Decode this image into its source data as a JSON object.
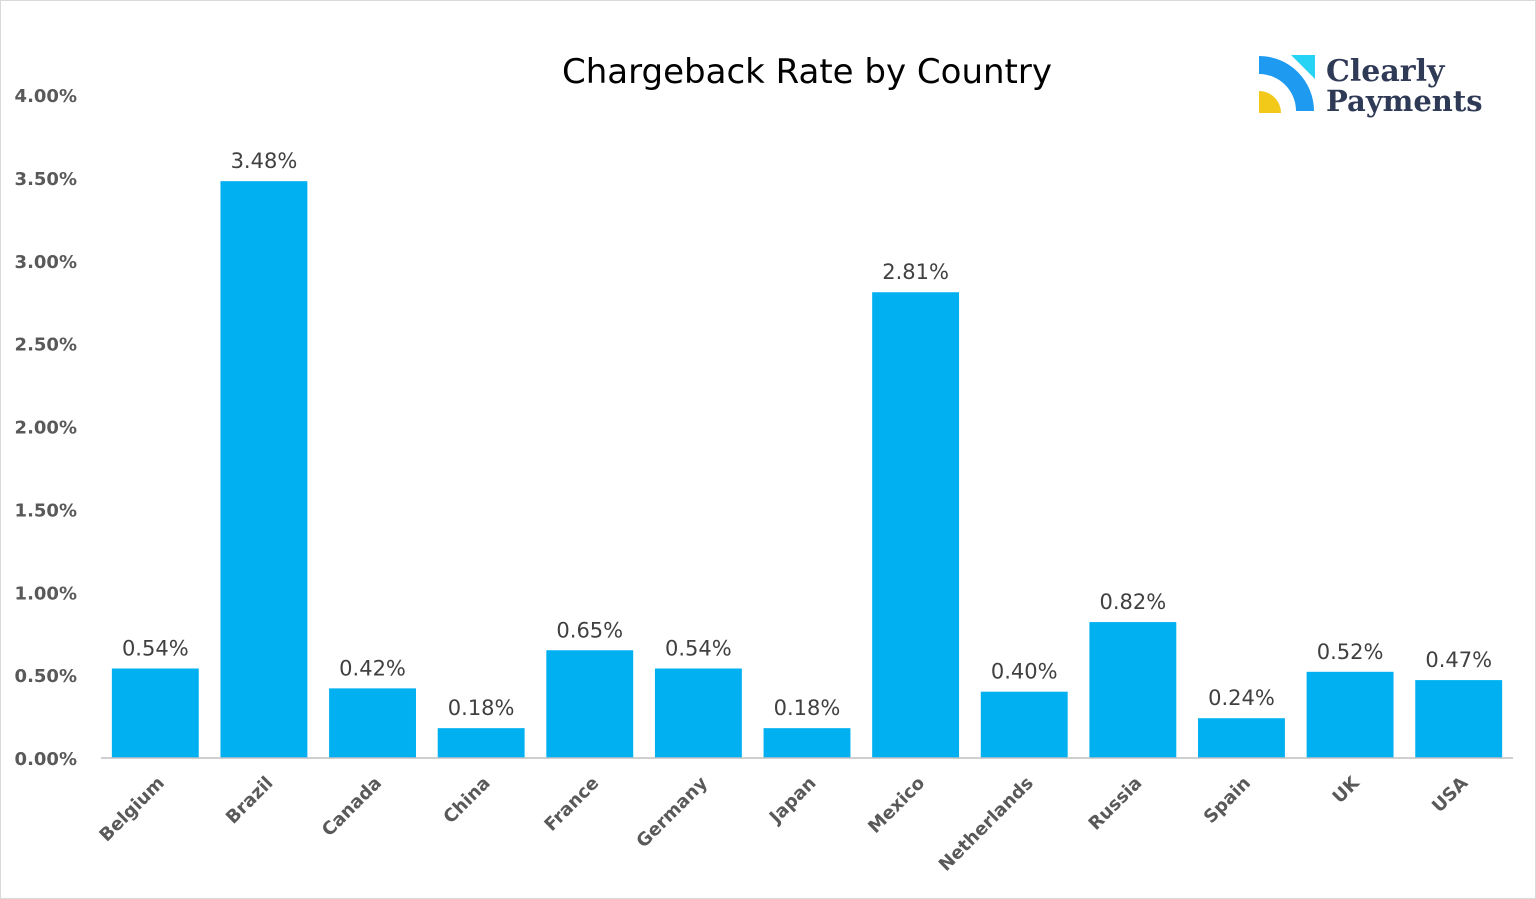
{
  "colors": {
    "bar": "#00b0f0",
    "axis": "#bfbfbf",
    "tick_text": "#595959",
    "label_text": "#404040",
    "logo_text": "#2f3a56",
    "logo_blue": "#1e9bf0",
    "logo_cyan": "#27d3f5",
    "logo_yellow": "#f2c919"
  },
  "logo": {
    "line1": "Clearly",
    "line2": "Payments",
    "icon": "clearly-payments-logo-icon"
  },
  "chart_data": {
    "type": "bar",
    "title": "Chargeback Rate by Country",
    "xlabel": "",
    "ylabel": "",
    "categories": [
      "Belgium",
      "Brazil",
      "Canada",
      "China",
      "France",
      "Germany",
      "Japan",
      "Mexico",
      "Netherlands",
      "Russia",
      "Spain",
      "UK",
      "USA"
    ],
    "values": [
      0.54,
      3.48,
      0.42,
      0.18,
      0.65,
      0.54,
      0.18,
      2.81,
      0.4,
      0.82,
      0.24,
      0.52,
      0.47
    ],
    "value_labels": [
      "0.54%",
      "3.48%",
      "0.42%",
      "0.18%",
      "0.65%",
      "0.54%",
      "0.18%",
      "2.81%",
      "0.40%",
      "0.82%",
      "0.24%",
      "0.52%",
      "0.47%"
    ],
    "yticks": [
      0,
      0.5,
      1.0,
      1.5,
      2.0,
      2.5,
      3.0,
      3.5,
      4.0
    ],
    "ytick_labels": [
      "0.00%",
      "0.50%",
      "1.00%",
      "1.50%",
      "2.00%",
      "2.50%",
      "3.00%",
      "3.50%",
      "4.00%"
    ],
    "ylim": [
      0,
      4.0
    ],
    "grid": false,
    "legend": "none"
  }
}
